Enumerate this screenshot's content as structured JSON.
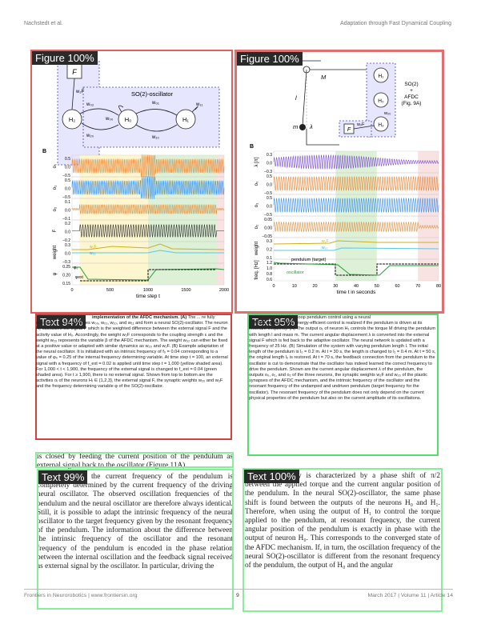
{
  "header": {
    "left": "Nachstedt et al.",
    "right": "Adaptation through Fast Dynamical Coupling"
  },
  "annotations": {
    "fig_left_tag": "Figure 100%",
    "fig_right_tag": "Figure 100%",
    "cap_left_tag": "Text 94%",
    "cap_right_tag": "Text 95%",
    "body_left_tag": "Text 99%",
    "body_right_tag": "Text 100%"
  },
  "figure_left": {
    "node_f": "F",
    "node_h2": "H₂",
    "node_h0": "H₀",
    "node_h1": "H₁",
    "so2_label": "SO(2)-oscillator",
    "w2f": "w₂F",
    "w02": "w₀₂",
    "w01": "w₀₁",
    "w11": "w₁₁",
    "w00": "w₀₀",
    "w20": "w₂₀",
    "w10": "w₁₀",
    "panel_b": "B",
    "rows": [
      "o₀",
      "o₁",
      "o₂",
      "F",
      "weight",
      "φ"
    ],
    "yticks": [
      [
        "0.5",
        "0.0",
        "−0.5"
      ],
      [
        "0.5",
        "0.0",
        "−0.5"
      ],
      [
        "0.1",
        "0.0",
        "−0.1"
      ],
      [
        "0.2",
        "0.0",
        "−0.2"
      ],
      [
        "0.3",
        "0.0",
        "−0.3"
      ],
      [
        "0.25",
        "0.20",
        "0.15"
      ]
    ],
    "legend_w2f": "w₂F",
    "legend_w20": "w₂₀",
    "legend_phi": "φ₀",
    "legend_vext": "φext",
    "xticks": [
      "0",
      "500",
      "1000",
      "1500",
      "2000"
    ],
    "xlabel": "time step t"
  },
  "figure_right": {
    "label_m_big": "M",
    "label_l": "l",
    "label_m_small": "m",
    "label_lambda": "λ",
    "node_f": "F",
    "node_h1": "H₁",
    "node_h0": "H₀",
    "node_h2": "H₂",
    "label_w2f": "w₂F",
    "label_w20": "w₂₀",
    "so2_label_1": "SO(2)",
    "so2_label_2": "+",
    "so2_label_3": "AFDC",
    "so2_label_4": "(Fig. 9A)",
    "panel_b": "B",
    "rows": [
      "λ [π]",
      "o₀",
      "o₁",
      "o₂",
      "weight",
      "freq. [Hz]"
    ],
    "yticks": [
      [
        "0.3",
        "0.0",
        "−0.3"
      ],
      [
        "0.5",
        "0.0",
        "−0.5"
      ],
      [
        "0.5",
        "0.0",
        "−0.5"
      ],
      [
        "0.05",
        "0.00",
        "−0.05"
      ],
      [
        "0.3",
        "0.2",
        "0.1"
      ],
      [
        "1.2",
        "1.0",
        "0.8",
        "0.6"
      ]
    ],
    "legend_w2f": "w₂F",
    "legend_w20": "w₂₀",
    "legend_target": "pendulum (target)",
    "legend_osc": "oscillator",
    "xticks": [
      "0",
      "10",
      "20",
      "30",
      "40",
      "50",
      "60",
      "70",
      "80"
    ],
    "xlabel": "time t in seconds"
  },
  "caption_left": {
    "bold": "implementation of the AFDC mechanism. (A)",
    "text": " The ... re fully connected by the synapses w₀₀, w₀₁, w₁₀, and w₁₁ and form a neural SO(2)-oscillator. The neuron H₂ calculates the signal P which is the weighted difference between the external signal F and the activity value of H₀. Accordingly, the weight w₂F corresponds to the coupling strength ε and the weight w₂₀ represents the variable β of the AFDC mechanism. The weight w₀₂ can either be fixed at a positive value or adapted with similar dynamics as w₂₀ and w₂F. (B) Example adaptation of the neural oscillator. It is initialized with an intrinsic frequency of f₀ = 0.04 corresponding to a value of φ₀ = 0.25 of the internal frequency determining variable. At time step t = 100, an external signal with a frequency of f_ext = 0.02 is applied until time step t = 1,000 (yellow shaded area). For 1,000 < t < 1,900, the frequency of the external signal is changed to f_ext = 0.04 (green shaded area). For t ≥ 1,900, there is no external signal. Shown from top to bottom are the activities oᵢ of the neurons Hᵢ ∈ {1,2,3}, the external signal F, the synaptic weights w₂₀ and w₂F and the frequency determining variable φ of the SO(2)-oscillator."
  },
  "caption_right": {
    "title": "... loop pendulum control using a neural",
    "bold": "... AFDC mechanism.",
    "text": " Energy-efficient control is realized if the pendulum is driven at its resonant frequency. (A) The output o₁ of neuron H₁ controls the torque M driving the pendulum with length l and mass m. The current angular displacement λ is converted into the external signal F which is fed back to the adaptive oscillator. The neural network is updated with a frequency of 25 Hz. (B) Simulation of the system with varying pendulum length l. The initial length of the pendulum is l₀ = 0.2 m. At t = 30 s, the length is changed to l₁ = 0.4 m. At t = 50 s, the original length l₀ is restored. At t = 70 s, the feedback connection from the pendulum to the oscillator is cut to demonstrate that the oscillator has indeed learned the correct frequency to drive the pendulum. Shown are the current angular displacement λ of the pendulum, the outputs o₀, o₁, and o₂ of the three neurons, the synaptic weights w₂F and w₂₀ of the plastic synapses of the AFDC mechanism, and the intrinsic frequency of the oscillator and the resonant frequency of the undamped and undriven pendulum (target frequency for the oscillator). The resonant frequency of the pendulum does not only depend on the current physical properties of the pendulum but also on the current amplitude of its oscillations."
  },
  "body_left_lead": "is closed by feeding the current position of the pendulum as external signal back to the oscillator (Figure 11A).",
  "body_left": "...-loop system, the current frequency of the pendulum is completely determined by the current frequency of the driving neural oscillator. The observed oscillation frequencies of the pendulum and the neural oscillator are therefore always identical. Still, it is possible to adapt the intrinsic frequency of the neural oscillator to the target frequency given by the resonant frequency of the pendulum. The information about the difference between the intrinsic frequency of the oscillator and the resonant frequency of the pendulum is encoded in the phase relation between the internal oscillation and the feedback signal received as external signal by the oscillator. In particular, driving the",
  "body_right": "...onant frequency is characterized by a phase shift of π/2 between the applied torque and the current angular position of the pendulum. In the neural SO(2)-oscillator, the same phase shift is found between the outputs of the neurons H₀ and H₁. Therefore, when using the output of H₁ to control the torque applied to the pendulum, at resonant frequency, the current angular position of the pendulum is exactly in phase with the output of neuron H₀. This corresponds to the converged state of the AFDC mechanism. If, in turn, the oscillation frequency of the neural SO(2)-oscillator is different from the resonant frequency of the pendulum, the output of H₀ and the angular",
  "footer": {
    "left": "Frontiers in Neurorobotics | www.frontiersin.org",
    "page": "9",
    "right": "March 2017 | Volume 11 | Article 14"
  }
}
